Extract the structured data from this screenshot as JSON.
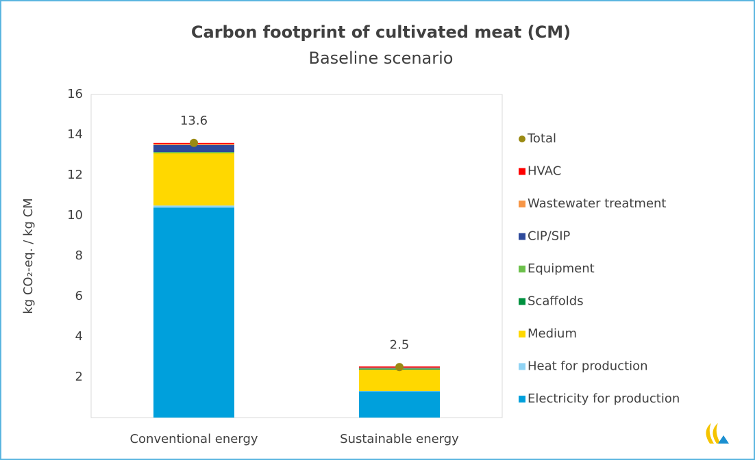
{
  "chart_data": {
    "type": "bar",
    "stacked": true,
    "title": "Carbon footprint of cultivated meat (CM)",
    "subtitle": "Baseline scenario",
    "y_label": "kg CO₂-eq.  /  kg CM",
    "categories": [
      "Conventional energy",
      "Sustainable energy"
    ],
    "ylim": [
      0,
      16
    ],
    "yticks": [
      2,
      4,
      6,
      8,
      10,
      12,
      14,
      16
    ],
    "legend": "right",
    "series": [
      {
        "name": "Electricity for production",
        "color": "#00a0dc",
        "values": [
          10.4,
          1.3
        ]
      },
      {
        "name": "Heat for production",
        "color": "#8fd3f4",
        "values": [
          0.1,
          0.02
        ]
      },
      {
        "name": "Medium",
        "color": "#ffd800",
        "values": [
          2.6,
          1.05
        ]
      },
      {
        "name": "Scaffolds",
        "color": "#00913f",
        "values": [
          0.02,
          0.03
        ]
      },
      {
        "name": "Equipment",
        "color": "#6cc04a",
        "values": [
          0.03,
          0.03
        ]
      },
      {
        "name": "CIP/SIP",
        "color": "#2e4a9b",
        "values": [
          0.35,
          0.03
        ]
      },
      {
        "name": "Wastewater treatment",
        "color": "#f79646",
        "values": [
          0.05,
          0.02
        ]
      },
      {
        "name": "HVAC",
        "color": "#ff0000",
        "values": [
          0.05,
          0.05
        ]
      },
      {
        "name": "Total",
        "type": "scatter",
        "color": "#9a8a12",
        "values": [
          13.6,
          2.5
        ]
      }
    ]
  }
}
